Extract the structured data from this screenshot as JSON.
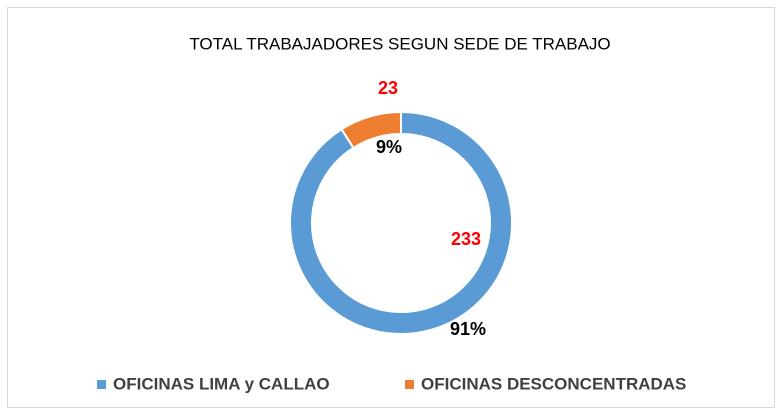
{
  "chart_data": {
    "type": "donut",
    "title": "TOTAL TRABAJADORES SEGUN SEDE DE TRABAJO",
    "categories": [
      "OFICINAS LIMA y CALLAO",
      "OFICINAS DESCONCENTRADAS"
    ],
    "values": [
      233,
      23
    ],
    "percent_labels": [
      "91%",
      "9%"
    ],
    "colors": [
      "#5b9bd5",
      "#ed7d31"
    ],
    "value_label_color": "#ff0000",
    "legend": "bottom"
  }
}
